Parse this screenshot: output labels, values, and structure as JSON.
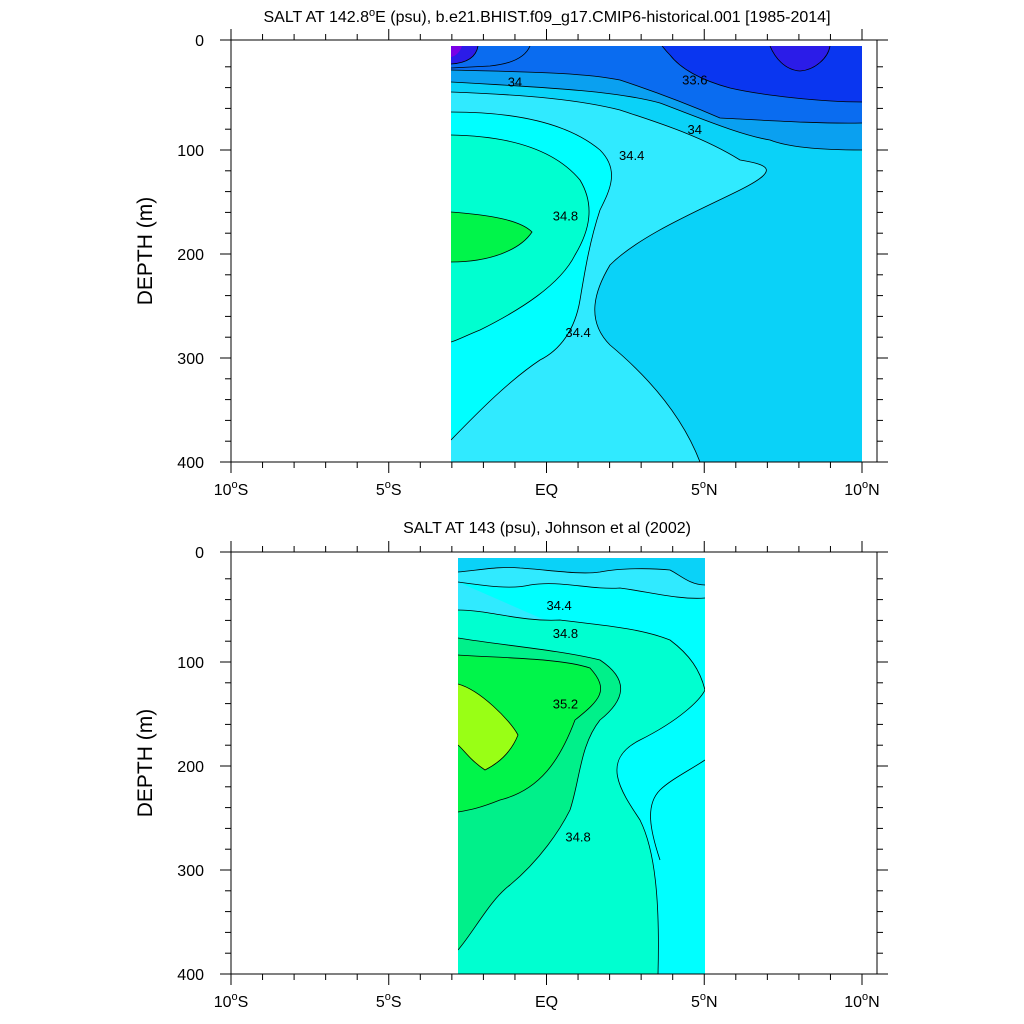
{
  "chart_data": [
    {
      "type": "contour",
      "title": "SALT AT 142.8°E (psu), b.e21.BHIST.f09_g17.CMIP6-historical.001 [1985-2014]",
      "title_parts": {
        "a": "SALT AT 142.8",
        "sup": "o",
        "b": "E (psu), b.e21.BHIST.f09_g17.CMIP6-historical.001 [1985-2014]"
      },
      "ylabel": "DEPTH (m)",
      "xlim": [
        -10,
        10
      ],
      "ylim": [
        0,
        400
      ],
      "y_inverted": true,
      "x_ticks": [
        {
          "value": -10,
          "num": "10",
          "deg": "o",
          "hem": "S"
        },
        {
          "value": -5,
          "num": "5",
          "deg": "o",
          "hem": "S"
        },
        {
          "value": 0,
          "num": "EQ",
          "deg": "",
          "hem": ""
        },
        {
          "value": 5,
          "num": "5",
          "deg": "o",
          "hem": "N"
        },
        {
          "value": 10,
          "num": "10",
          "deg": "o",
          "hem": "N"
        }
      ],
      "y_ticks": [
        "0",
        "100",
        "200",
        "300",
        "400"
      ],
      "data_extent_lat": [
        -3,
        10
      ],
      "data_extent_depth": [
        5,
        400
      ],
      "contour_labels": [
        {
          "text": "34",
          "lat": -1,
          "depth": 34
        },
        {
          "text": "33.6",
          "lat": 4.7,
          "depth": 32
        },
        {
          "text": "34",
          "lat": 4.7,
          "depth": 80
        },
        {
          "text": "34.4",
          "lat": 2.7,
          "depth": 105
        },
        {
          "text": "34.8",
          "lat": 0.6,
          "depth": 163
        },
        {
          "text": "34.4",
          "lat": 1.0,
          "depth": 275
        }
      ]
    },
    {
      "type": "contour",
      "title": "SALT AT 143 (psu), Johnson et al (2002)",
      "title_parts": {
        "a": "SALT AT 143 (psu), Johnson et al (2002)",
        "sup": "",
        "b": ""
      },
      "ylabel": "DEPTH (m)",
      "xlim": [
        -10,
        10
      ],
      "ylim": [
        0,
        400
      ],
      "y_inverted": true,
      "x_ticks": [
        {
          "value": -10,
          "num": "10",
          "deg": "o",
          "hem": "S"
        },
        {
          "value": -5,
          "num": "5",
          "deg": "o",
          "hem": "S"
        },
        {
          "value": 0,
          "num": "EQ",
          "deg": "",
          "hem": ""
        },
        {
          "value": 5,
          "num": "5",
          "deg": "o",
          "hem": "N"
        },
        {
          "value": 10,
          "num": "10",
          "deg": "o",
          "hem": "N"
        }
      ],
      "y_ticks": [
        "0",
        "100",
        "200",
        "300",
        "400"
      ],
      "data_extent_lat": [
        -2.75,
        5
      ],
      "data_extent_depth": [
        5,
        400
      ],
      "contour_labels": [
        {
          "text": "34.4",
          "lat": 0.4,
          "depth": 45
        },
        {
          "text": "34.8",
          "lat": 0.6,
          "depth": 72
        },
        {
          "text": "35.2",
          "lat": 0.6,
          "depth": 140
        },
        {
          "text": "34.8",
          "lat": 1.0,
          "depth": 268
        }
      ]
    }
  ],
  "colors": {
    "s33_2": "#7a00e6",
    "s33_4": "#2b1ce8",
    "s33_6": "#0a36f0",
    "s33_8": "#0a6cf0",
    "s34_0": "#0aa0f0",
    "s34_2": "#0ad2f8",
    "s34_4": "#30eaff",
    "s34_6": "#00ffff",
    "s34_8": "#00ffd0",
    "s35_0": "#00f08a",
    "s35_2": "#00f54a",
    "s35_4": "#99ff15"
  }
}
